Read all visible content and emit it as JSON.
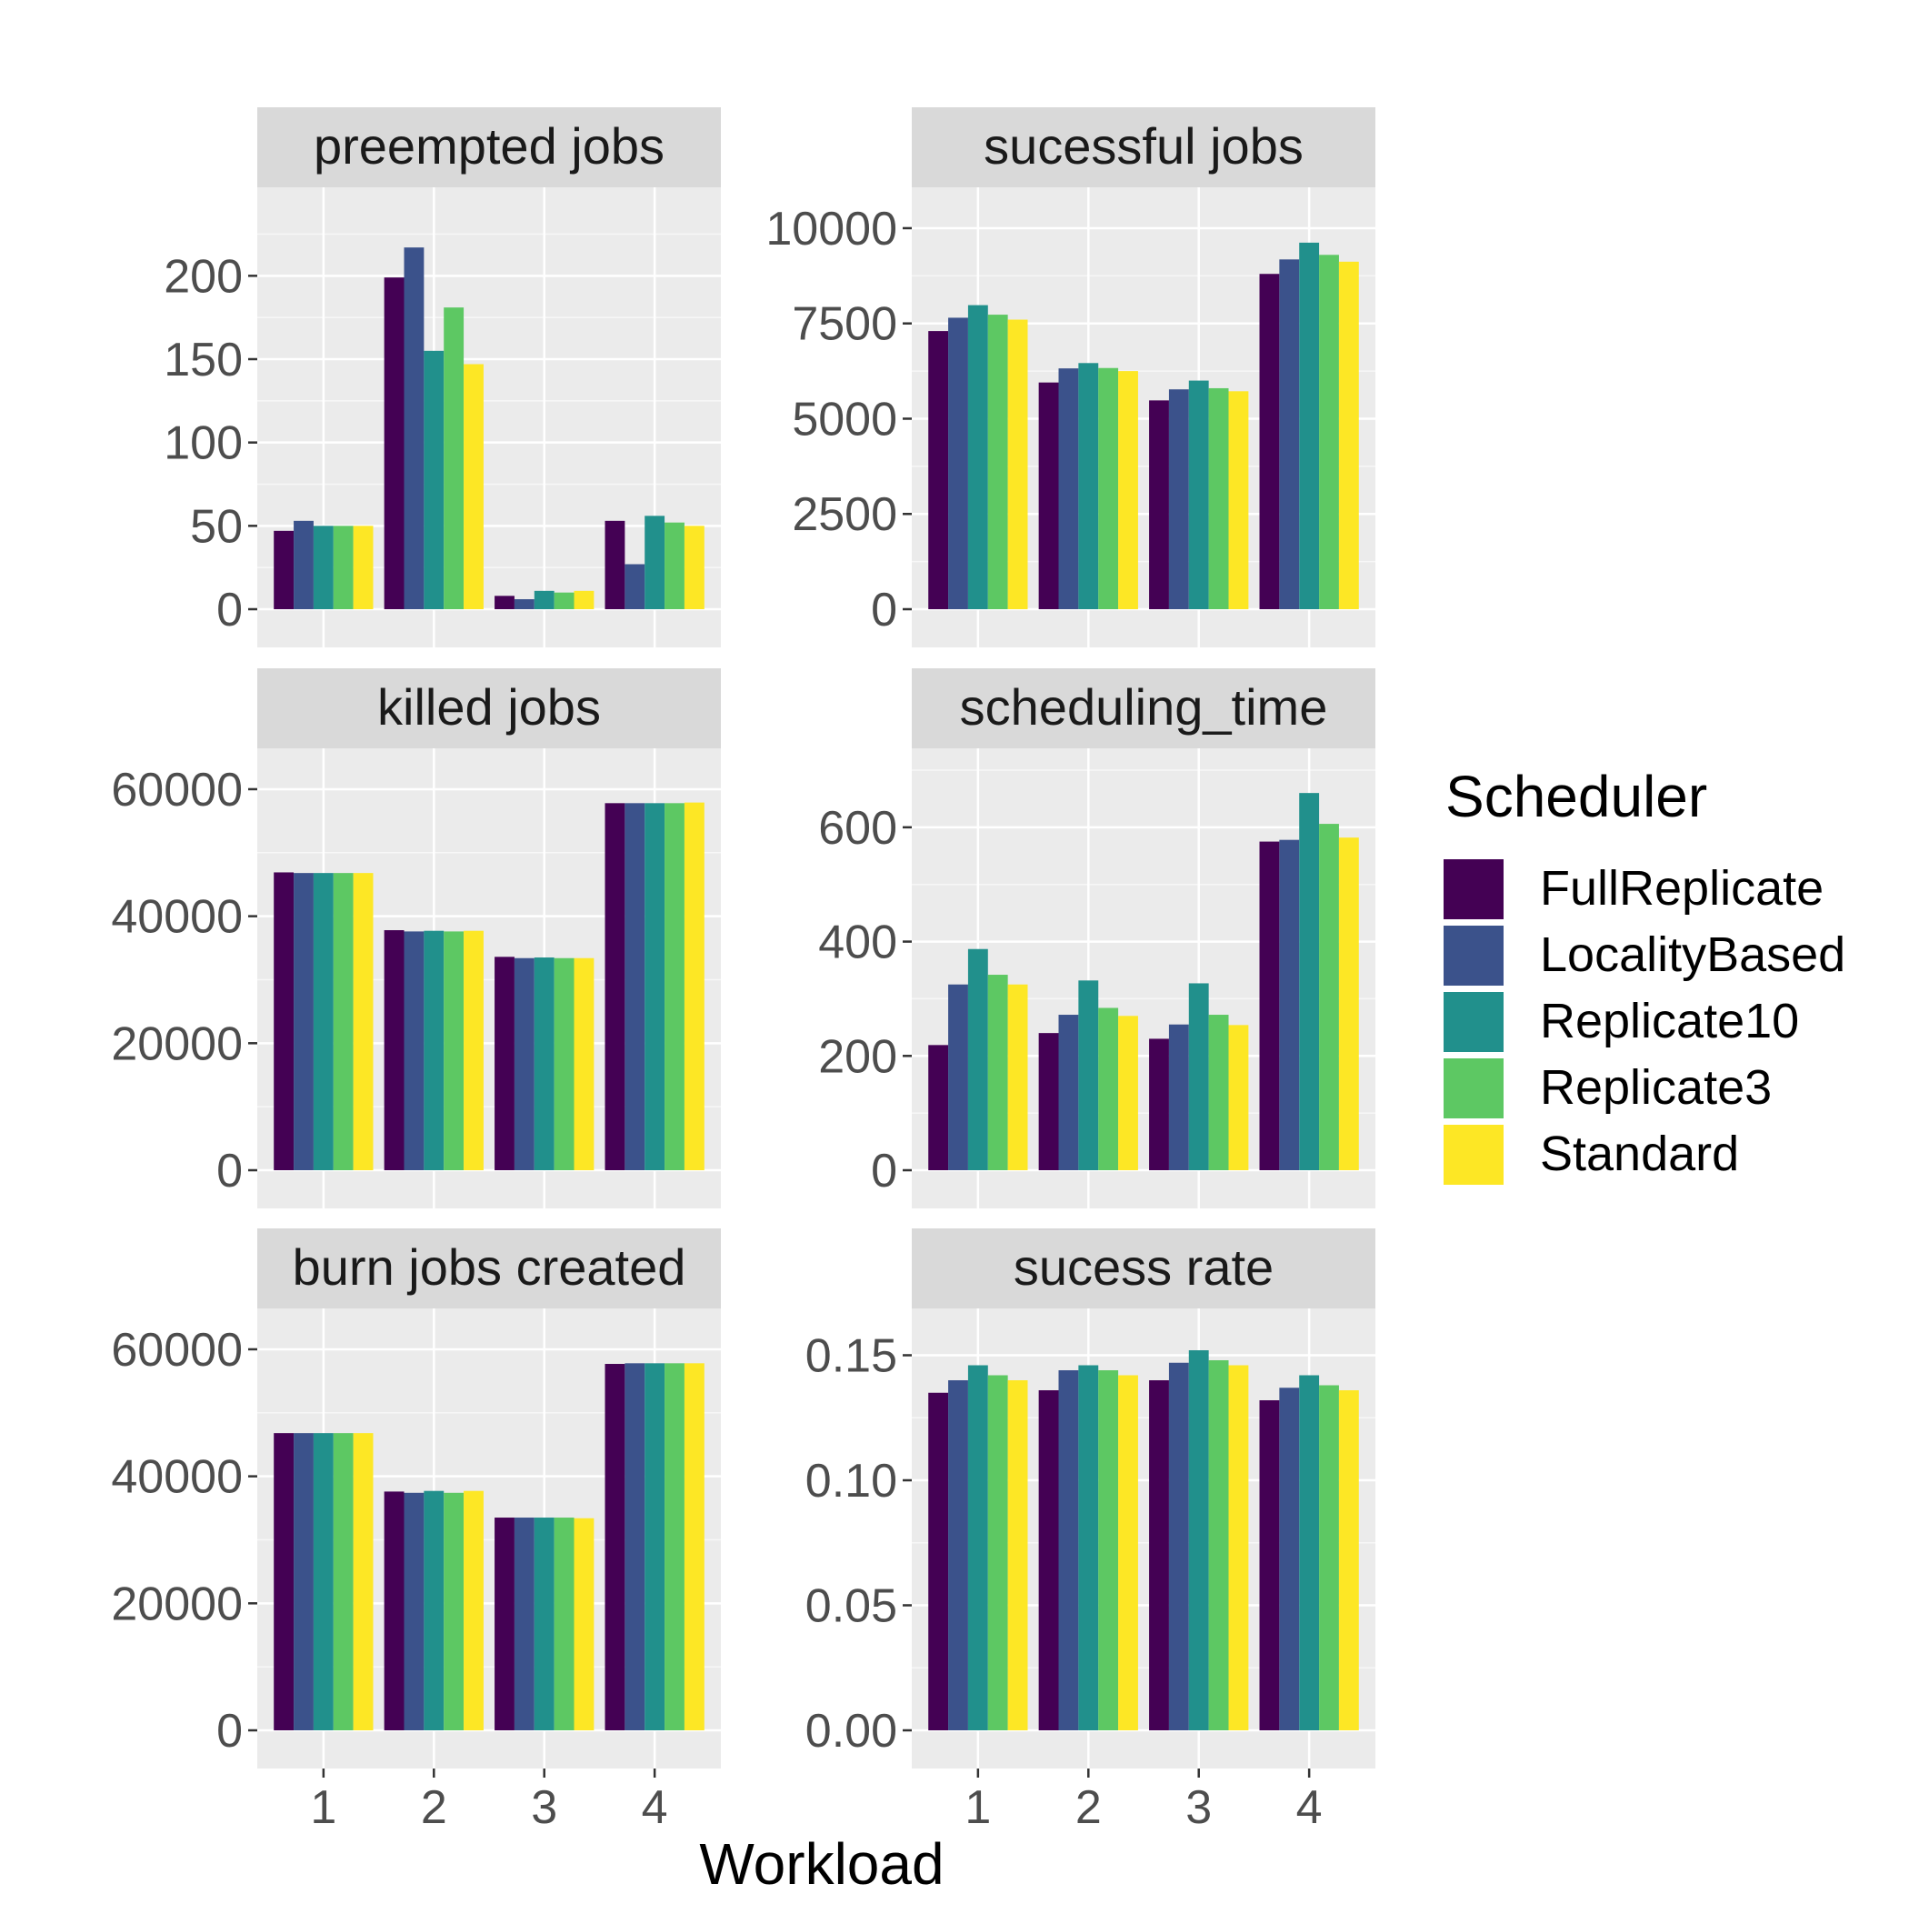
{
  "figure": {
    "xlabel": "Workload",
    "legend_title": "Scheduler",
    "legend_position": "right",
    "grid": true
  },
  "series_colors": {
    "FullReplicate": "#440154",
    "LocalityBased": "#3B528B",
    "Replicate10": "#21908C",
    "Replicate3": "#5DC863",
    "Standard": "#FDE725"
  },
  "chart_data": [
    {
      "type": "bar",
      "title": "preempted jobs",
      "categories": [
        "1",
        "2",
        "3",
        "4"
      ],
      "ylim": [
        0,
        240
      ],
      "yticks": [
        0,
        50,
        100,
        150,
        200
      ],
      "ytick_labels": [
        "0",
        "50",
        "100",
        "150",
        "200"
      ],
      "series": [
        {
          "name": "FullReplicate",
          "values": [
            47,
            199,
            8,
            53
          ]
        },
        {
          "name": "LocalityBased",
          "values": [
            53,
            217,
            6,
            27
          ]
        },
        {
          "name": "Replicate10",
          "values": [
            50,
            155,
            11,
            56
          ]
        },
        {
          "name": "Replicate3",
          "values": [
            50,
            181,
            10,
            52
          ]
        },
        {
          "name": "Standard",
          "values": [
            50,
            147,
            11,
            50
          ]
        }
      ]
    },
    {
      "type": "bar",
      "title": "sucessful jobs",
      "categories": [
        "1",
        "2",
        "3",
        "4"
      ],
      "ylim": [
        0,
        10500
      ],
      "yticks": [
        0,
        2500,
        5000,
        7500,
        10000
      ],
      "ytick_labels": [
        "0",
        "2500",
        "5000",
        "7500",
        "10000"
      ],
      "series": [
        {
          "name": "FullReplicate",
          "values": [
            7300,
            5950,
            5480,
            8800
          ]
        },
        {
          "name": "LocalityBased",
          "values": [
            7650,
            6320,
            5770,
            9180
          ]
        },
        {
          "name": "Replicate10",
          "values": [
            7980,
            6460,
            6000,
            9620
          ]
        },
        {
          "name": "Replicate3",
          "values": [
            7730,
            6330,
            5800,
            9300
          ]
        },
        {
          "name": "Standard",
          "values": [
            7600,
            6250,
            5720,
            9120
          ]
        }
      ]
    },
    {
      "type": "bar",
      "title": "killed jobs",
      "categories": [
        "1",
        "2",
        "3",
        "4"
      ],
      "ylim": [
        0,
        63000
      ],
      "yticks": [
        0,
        20000,
        40000,
        60000
      ],
      "ytick_labels": [
        "0",
        "20000",
        "40000",
        "60000"
      ],
      "series": [
        {
          "name": "FullReplicate",
          "values": [
            46900,
            37800,
            33600,
            57800
          ]
        },
        {
          "name": "LocalityBased",
          "values": [
            46800,
            37600,
            33400,
            57800
          ]
        },
        {
          "name": "Replicate10",
          "values": [
            46800,
            37700,
            33500,
            57800
          ]
        },
        {
          "name": "Replicate3",
          "values": [
            46800,
            37600,
            33400,
            57800
          ]
        },
        {
          "name": "Standard",
          "values": [
            46800,
            37700,
            33400,
            57900
          ]
        }
      ]
    },
    {
      "type": "bar",
      "title": "scheduling_time",
      "categories": [
        "1",
        "2",
        "3",
        "4"
      ],
      "ylim": [
        0,
        700
      ],
      "yticks": [
        0,
        200,
        400,
        600
      ],
      "ytick_labels": [
        "0",
        "200",
        "400",
        "600"
      ],
      "series": [
        {
          "name": "FullReplicate",
          "values": [
            219,
            240,
            230,
            575
          ]
        },
        {
          "name": "LocalityBased",
          "values": [
            325,
            272,
            255,
            578
          ]
        },
        {
          "name": "Replicate10",
          "values": [
            387,
            332,
            327,
            660
          ]
        },
        {
          "name": "Replicate3",
          "values": [
            342,
            284,
            272,
            606
          ]
        },
        {
          "name": "Standard",
          "values": [
            325,
            270,
            254,
            582
          ]
        }
      ]
    },
    {
      "type": "bar",
      "title": "burn jobs created",
      "categories": [
        "1",
        "2",
        "3",
        "4"
      ],
      "ylim": [
        0,
        63000
      ],
      "yticks": [
        0,
        20000,
        40000,
        60000
      ],
      "ytick_labels": [
        "0",
        "20000",
        "40000",
        "60000"
      ],
      "series": [
        {
          "name": "FullReplicate",
          "values": [
            46800,
            37600,
            33500,
            57700
          ]
        },
        {
          "name": "LocalityBased",
          "values": [
            46800,
            37400,
            33500,
            57800
          ]
        },
        {
          "name": "Replicate10",
          "values": [
            46800,
            37700,
            33500,
            57800
          ]
        },
        {
          "name": "Replicate3",
          "values": [
            46800,
            37400,
            33500,
            57800
          ]
        },
        {
          "name": "Standard",
          "values": [
            46800,
            37700,
            33400,
            57800
          ]
        }
      ]
    },
    {
      "type": "bar",
      "title": "sucess rate",
      "categories": [
        "1",
        "2",
        "3",
        "4"
      ],
      "ylim": [
        0,
        0.16
      ],
      "yticks": [
        0,
        0.05,
        0.1,
        0.15
      ],
      "ytick_labels": [
        "0.00",
        "0.05",
        "0.10",
        "0.15"
      ],
      "series": [
        {
          "name": "FullReplicate",
          "values": [
            0.135,
            0.136,
            0.14,
            0.132
          ]
        },
        {
          "name": "LocalityBased",
          "values": [
            0.14,
            0.144,
            0.147,
            0.137
          ]
        },
        {
          "name": "Replicate10",
          "values": [
            0.146,
            0.146,
            0.152,
            0.142
          ]
        },
        {
          "name": "Replicate3",
          "values": [
            0.142,
            0.144,
            0.148,
            0.138
          ]
        },
        {
          "name": "Standard",
          "values": [
            0.14,
            0.142,
            0.146,
            0.136
          ]
        }
      ]
    }
  ]
}
